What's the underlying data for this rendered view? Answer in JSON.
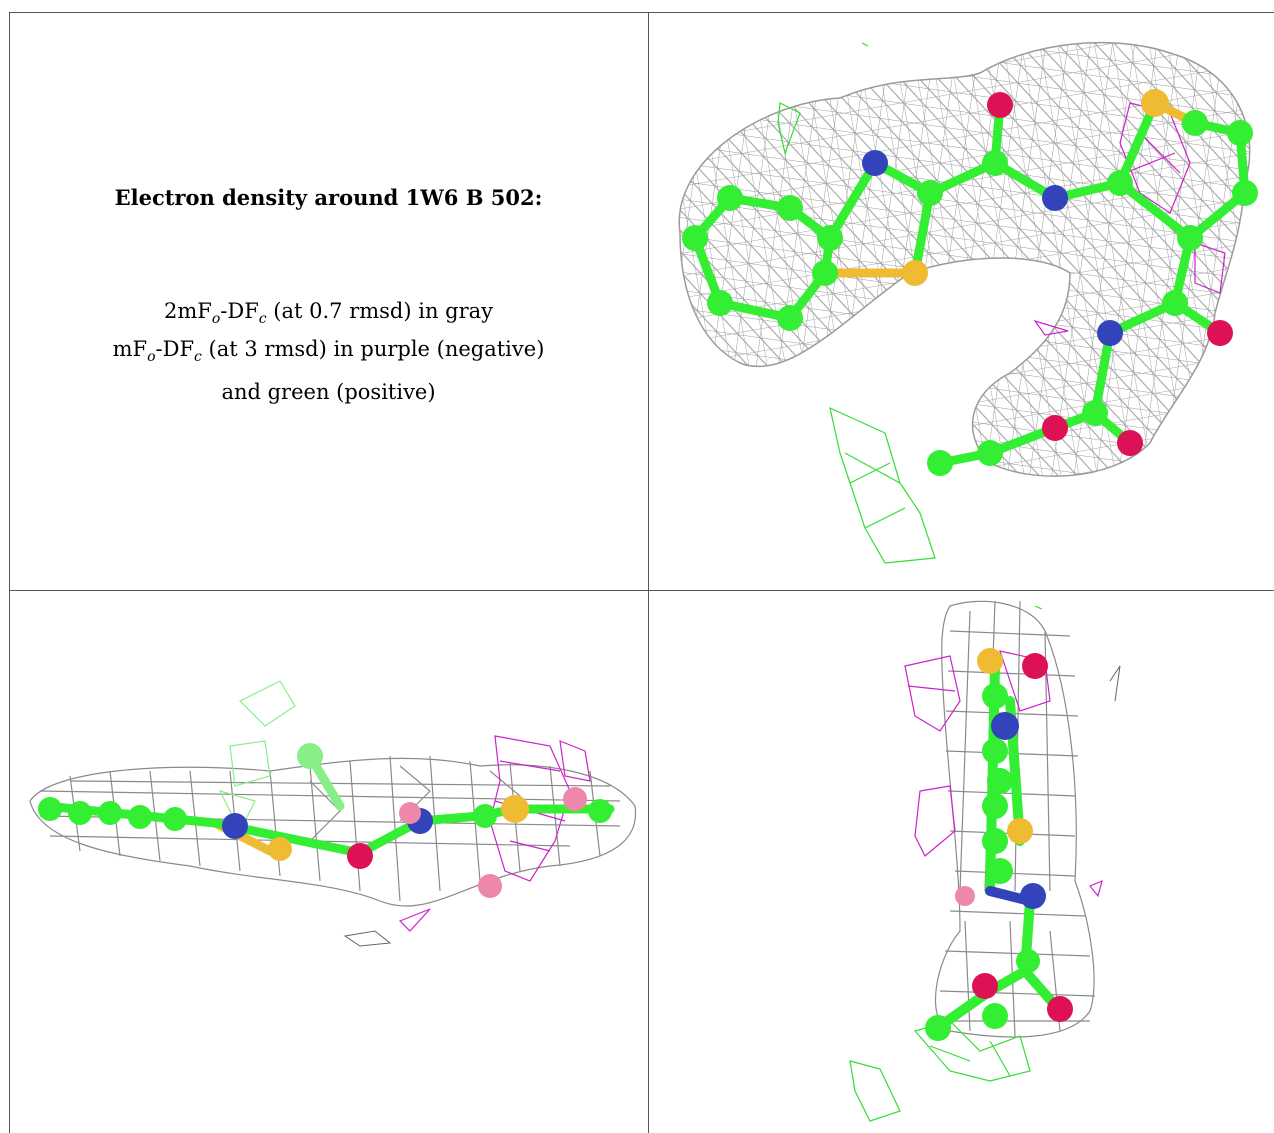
{
  "caption": {
    "title": "Electron density around 1W6 B 502:",
    "line1": {
      "pre": "2mF",
      "sub1": "o",
      "mid": "-DF",
      "sub2": "c",
      "post": " (at 0.7 rmsd) in gray"
    },
    "line2": {
      "pre": "mF",
      "sub1": "o",
      "mid": "-DF",
      "sub2": "c",
      "post": " (at 3 rmsd) in purple (negative)"
    },
    "line3": "and green (positive)"
  },
  "colors": {
    "carbon": "#33ee33",
    "nitrogen": "#3344bb",
    "oxygen": "#dd1155",
    "sulfur": "#eebb33",
    "mesh_2fofc": "#9a9a9a",
    "mesh_negative": "#cc22cc",
    "mesh_positive": "#33dd33",
    "grid": "#555555"
  },
  "panels": [
    {
      "name": "view-top-right",
      "description": ""
    },
    {
      "name": "view-bottom-left",
      "description": ""
    },
    {
      "name": "view-bottom-right",
      "description": ""
    }
  ]
}
